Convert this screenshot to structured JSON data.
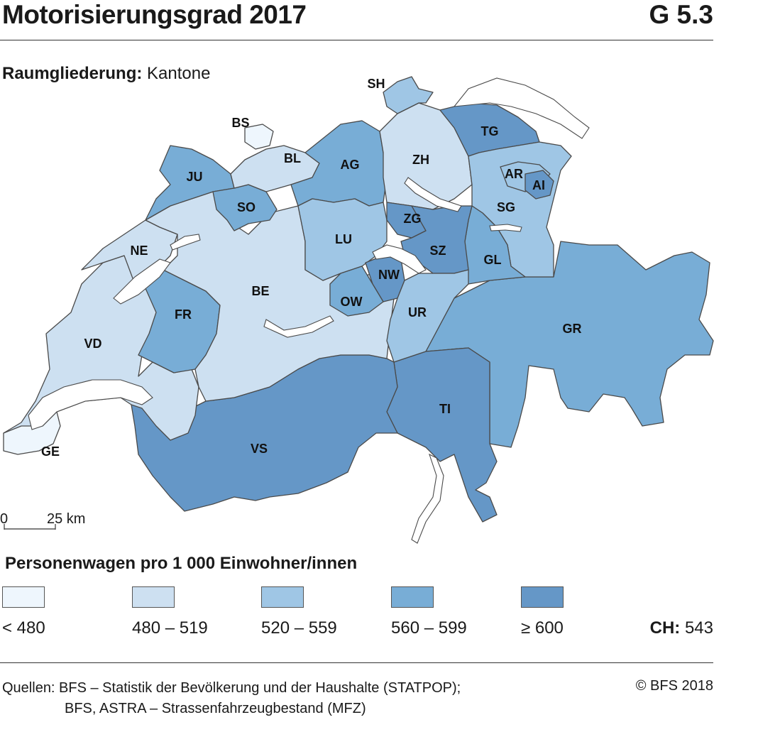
{
  "header": {
    "title": "Motorisierungsgrad 2017",
    "code": "G 5.3"
  },
  "subtitle": {
    "label": "Raumgliederung:",
    "value": "Kantone"
  },
  "scale": {
    "start": "0",
    "end": "25 km"
  },
  "colors": {
    "class1": "#eef6fd",
    "class2": "#cde0f1",
    "class3": "#9fc6e5",
    "class4": "#78add6",
    "class5": "#6597c7",
    "lake": "#ffffff",
    "border": "#4a4a4a"
  },
  "cantons": [
    {
      "code": "GE",
      "class": "< 480"
    },
    {
      "code": "BS",
      "class": "< 480"
    },
    {
      "code": "BE",
      "class": "480 – 519"
    },
    {
      "code": "BL",
      "class": "480 – 519"
    },
    {
      "code": "NE",
      "class": "480 – 519"
    },
    {
      "code": "VD",
      "class": "480 – 519"
    },
    {
      "code": "ZH",
      "class": "480 – 519"
    },
    {
      "code": "UR",
      "class": "520 – 559"
    },
    {
      "code": "LU",
      "class": "520 – 559"
    },
    {
      "code": "SG",
      "class": "520 – 559"
    },
    {
      "code": "SH",
      "class": "520 – 559"
    },
    {
      "code": "AR",
      "class": "520 – 559"
    },
    {
      "code": "JU",
      "class": "560 – 599"
    },
    {
      "code": "SO",
      "class": "560 – 599"
    },
    {
      "code": "AG",
      "class": "560 – 599"
    },
    {
      "code": "FR",
      "class": "560 – 599"
    },
    {
      "code": "OW",
      "class": "560 – 599"
    },
    {
      "code": "GL",
      "class": "560 – 599"
    },
    {
      "code": "GR",
      "class": "560 – 599"
    },
    {
      "code": "TG",
      "class": "≥ 600"
    },
    {
      "code": "AI",
      "class": "≥ 600"
    },
    {
      "code": "ZG",
      "class": "≥ 600"
    },
    {
      "code": "SZ",
      "class": "≥ 600"
    },
    {
      "code": "NW",
      "class": "≥ 600"
    },
    {
      "code": "TI",
      "class": "≥ 600"
    },
    {
      "code": "VS",
      "class": "≥ 600"
    }
  ],
  "legend": {
    "title": "Personenwagen pro 1 000 Einwohner/innen",
    "classes": [
      "< 480",
      "480 – 519",
      "520 – 559",
      "560 – 599",
      "≥ 600"
    ]
  },
  "national": {
    "label": "CH:",
    "value": "543"
  },
  "footer": {
    "sources_line1": "Quellen: BFS – Statistik der Bevölkerung und der Haushalte (STATPOP);",
    "sources_line2": "BFS, ASTRA – Strassenfahrzeugbestand (MFZ)",
    "copyright": "© BFS 2018"
  }
}
